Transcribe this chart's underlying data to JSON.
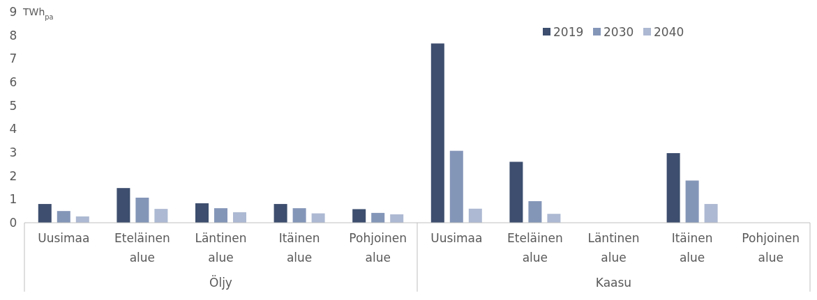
{
  "chart_data": {
    "type": "bar",
    "ylabel": "TWh$_{pa}$",
    "categories": [
      "Uusimaa",
      "Eteläinen alue",
      "Läntinen alue",
      "Itäinen alue",
      "Pohjoinen alue",
      "Uusimaa",
      "Eteläinen alue",
      "Läntinen alue",
      "Itäinen alue",
      "Pohjoinen alue"
    ],
    "series": [
      {
        "name": "2019",
        "color": "#3d4e6e",
        "values": [
          0.8,
          1.48,
          0.83,
          0.8,
          0.58,
          7.65,
          2.6,
          0,
          2.97,
          0
        ]
      },
      {
        "name": "2030",
        "color": "#8496b8",
        "values": [
          0.5,
          1.07,
          0.62,
          0.62,
          0.42,
          3.07,
          0.92,
          0,
          1.8,
          0
        ]
      },
      {
        "name": "2040",
        "color": "#adb9d2",
        "values": [
          0.27,
          0.59,
          0.45,
          0.4,
          0.36,
          0.6,
          0.38,
          0,
          0.8,
          0
        ]
      }
    ],
    "ylim": [
      0,
      9
    ],
    "yticks": [
      0,
      1,
      2,
      3,
      4,
      5,
      6,
      7,
      8,
      9
    ],
    "legend": "top right",
    "annotations": [
      "Öljy",
      "Kaasu"
    ]
  }
}
